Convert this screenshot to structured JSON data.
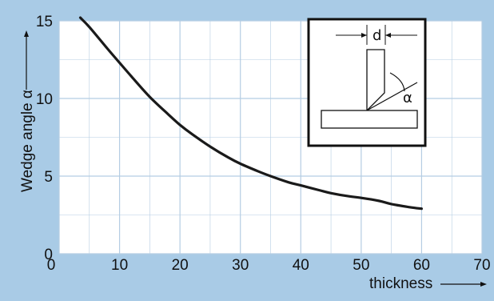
{
  "chart_data": {
    "type": "line",
    "title": "",
    "xlabel": "thickness",
    "ylabel": "Wedge angle α",
    "xlim": [
      0,
      70
    ],
    "ylim": [
      0,
      15
    ],
    "x_ticks": [
      "0",
      "10",
      "20",
      "30",
      "40",
      "50",
      "60",
      "70"
    ],
    "y_ticks": [
      "0",
      "5",
      "10",
      "15"
    ],
    "x_tick_values": [
      0,
      10,
      20,
      30,
      40,
      50,
      60,
      70
    ],
    "y_tick_values": [
      0,
      5,
      10,
      15
    ],
    "grid": true,
    "series": [
      {
        "x": [
          3.5,
          5,
          8,
          10,
          12,
          15,
          18,
          20,
          22,
          25,
          28,
          30,
          33,
          35,
          38,
          40,
          43,
          45,
          48,
          50,
          53,
          55,
          58,
          60
        ],
        "y": [
          15.2,
          14.6,
          13.2,
          12.3,
          11.4,
          10.1,
          9.0,
          8.3,
          7.7,
          6.9,
          6.2,
          5.8,
          5.3,
          5.0,
          4.6,
          4.4,
          4.1,
          3.9,
          3.7,
          3.6,
          3.4,
          3.2,
          3.0,
          2.9
        ]
      }
    ],
    "inset": {
      "d_label": "d",
      "angle_label": "α"
    },
    "colors": {
      "background": "#a9cbe6",
      "plot_bg": "#ffffff",
      "grid": "#b5cde3",
      "curve": "#1a1a1a"
    }
  }
}
